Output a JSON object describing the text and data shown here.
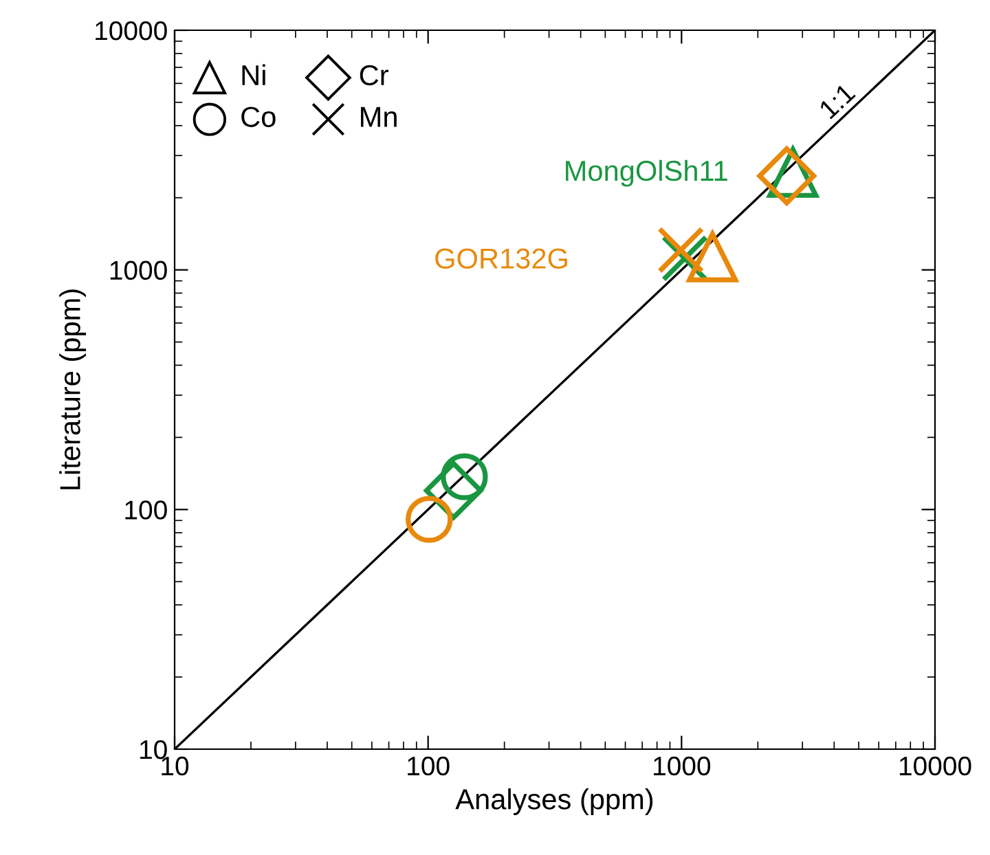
{
  "chart_data": {
    "type": "scatter",
    "xlabel": "Analyses (ppm)",
    "ylabel": "Literature (ppm)",
    "log": "xy",
    "xlim": [
      10,
      10000
    ],
    "ylim": [
      10,
      10000
    ],
    "xticks": [
      10,
      100,
      1000,
      10000
    ],
    "yticks": [
      10,
      100,
      1000,
      10000
    ],
    "grid": false,
    "series": [
      {
        "name": "MongOlSh11",
        "marker": "triangle",
        "color": "#1a9641",
        "x": [
          2750
        ],
        "values": [
          2550
        ]
      },
      {
        "marker": "circle",
        "color": "#1a9641",
        "x": [
          139
        ],
        "values": [
          137
        ]
      },
      {
        "marker": "diamond",
        "color": "#1a9641",
        "x": [
          126
        ],
        "values": [
          120
        ]
      },
      {
        "marker": "cross",
        "color": "#1a9641",
        "x": [
          1030
        ],
        "values": [
          1117
        ]
      },
      {
        "name": "GOR132G",
        "marker": "triangle",
        "color": "#e8890c",
        "x": [
          1324
        ],
        "values": [
          1132
        ]
      },
      {
        "marker": "circle",
        "color": "#e8890c",
        "x": [
          101
        ],
        "values": [
          91
        ]
      },
      {
        "marker": "diamond",
        "color": "#e8890c",
        "x": [
          2600
        ],
        "values": [
          2467
        ]
      },
      {
        "marker": "cross",
        "color": "#e8890c",
        "x": [
          993
        ],
        "values": [
          1210
        ]
      },
      {
        "type": "line",
        "color": "#000000",
        "x": [
          10,
          10000
        ],
        "values": [
          10,
          10000
        ]
      }
    ],
    "annotations": [
      "Ni",
      "Co",
      "Cr",
      "Mn",
      "1:1"
    ]
  }
}
